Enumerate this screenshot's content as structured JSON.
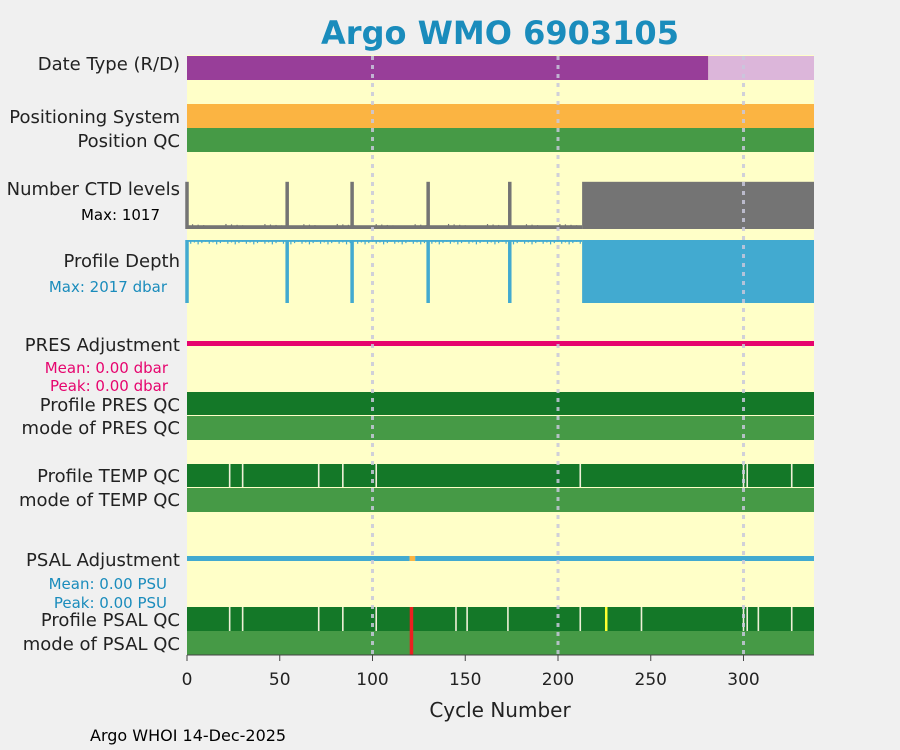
{
  "chart_data": {
    "type": "bar",
    "title": "Argo WMO 6903105",
    "xlabel": "Cycle Number",
    "xlim": [
      0,
      338
    ],
    "xticks": [
      0,
      50,
      100,
      150,
      200,
      250,
      300
    ],
    "footer": "Argo WHOI 14-Dec-2025",
    "rows": {
      "date_type": {
        "label": "Date Type (R/D)",
        "segments": [
          {
            "from": 0,
            "to": 281,
            "state": "R"
          },
          {
            "from": 281,
            "to": 338,
            "state": "D"
          }
        ]
      },
      "positioning_system": {
        "label": "Positioning System"
      },
      "position_qc": {
        "label": "Position QC"
      },
      "ctd_levels": {
        "label": "Number CTD levels",
        "max_label": "Max: 1017",
        "max": 1017,
        "baseline": 60,
        "spikes": [
          0,
          54,
          89,
          130,
          174
        ],
        "dense_from": 213,
        "dense_value": 1000
      },
      "profile_depth": {
        "label": "Profile Depth",
        "max_label": "Max: 2017 dbar",
        "max": 2017,
        "shallow": 1000,
        "deep_cycles": [
          0,
          54,
          89,
          130,
          174
        ],
        "deep_from": 213
      },
      "pres_adjustment": {
        "label": "PRES Adjustment",
        "mean": "Mean: 0.00 dbar",
        "peak": "Peak: 0.00 dbar"
      },
      "profile_pres_qc": {
        "label": "Profile PRES QC"
      },
      "mode_pres_qc": {
        "label": "mode of PRES QC"
      },
      "profile_temp_qc": {
        "label": "Profile TEMP QC",
        "flagged_cycles": [
          23,
          30,
          71,
          84,
          102,
          212,
          300,
          302,
          326
        ]
      },
      "mode_temp_qc": {
        "label": "mode of TEMP QC"
      },
      "psal_adjustment": {
        "label": "PSAL Adjustment",
        "mean": "Mean: 0.00 PSU",
        "peak": "Peak: 0.00 PSU",
        "gap": [
          120,
          123
        ]
      },
      "profile_psal_qc": {
        "label": "Profile PSAL QC",
        "flagged_cycles": [
          23,
          30,
          71,
          84,
          102,
          145,
          151,
          173,
          212,
          245,
          300,
          302,
          308,
          326
        ],
        "bad_cycles": [
          121
        ],
        "probably_bad_cycles": [
          226
        ]
      },
      "mode_psal_qc": {
        "label": "mode of PSAL QC",
        "bad_cycles": [
          121
        ]
      }
    },
    "colors": {
      "background": "#ffffc8",
      "date_r": "#983e99",
      "date_d": "#dcb6da",
      "orange": "#fbb442",
      "green_mode": "#469a46",
      "green_dark": "#147828",
      "gray": "#747474",
      "blue": "#42aad0",
      "magenta": "#e6046e",
      "red": "#eb2020",
      "yellow": "#ffff30",
      "title": "#1a8cbc",
      "grid": "#c8c8dc",
      "pres_stats": "#e6046e",
      "psal_stats": "#1a8cbc"
    }
  }
}
